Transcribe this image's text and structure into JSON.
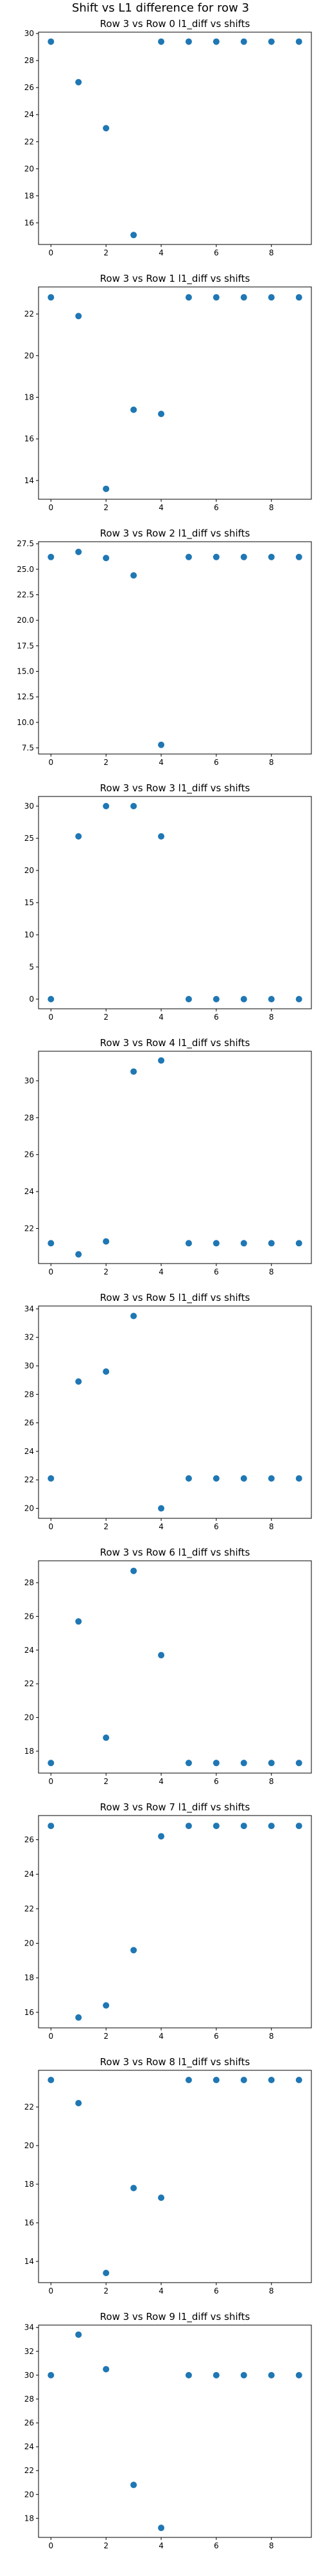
{
  "suptitle": "Shift vs L1 difference for row 3",
  "marker_color": "#1f77b4",
  "chart_data": [
    {
      "type": "scatter",
      "title": "Row 3 vs Row 0 l1_diff vs shifts",
      "x": [
        0,
        1,
        2,
        3,
        4,
        5,
        6,
        7,
        8,
        9
      ],
      "y": [
        29.4,
        26.4,
        23.0,
        15.1,
        29.4,
        29.4,
        29.4,
        29.4,
        29.4,
        29.4
      ],
      "xlim": [
        -0.45,
        9.45
      ],
      "ylim": [
        14.4,
        30.1
      ],
      "xticks": [
        0,
        2,
        4,
        6,
        8
      ],
      "yticks": [
        16,
        18,
        20,
        22,
        24,
        26,
        28,
        30
      ]
    },
    {
      "type": "scatter",
      "title": "Row 3 vs Row 1 l1_diff vs shifts",
      "x": [
        0,
        1,
        2,
        3,
        4,
        5,
        6,
        7,
        8,
        9
      ],
      "y": [
        22.8,
        21.9,
        13.6,
        17.4,
        17.2,
        22.8,
        22.8,
        22.8,
        22.8,
        22.8
      ],
      "xlim": [
        -0.45,
        9.45
      ],
      "ylim": [
        13.1,
        23.3
      ],
      "xticks": [
        0,
        2,
        4,
        6,
        8
      ],
      "yticks": [
        14,
        16,
        18,
        20,
        22
      ]
    },
    {
      "type": "scatter",
      "title": "Row 3 vs Row 2 l1_diff vs shifts",
      "x": [
        0,
        1,
        2,
        3,
        4,
        5,
        6,
        7,
        8,
        9
      ],
      "y": [
        26.2,
        26.7,
        26.1,
        24.4,
        7.8,
        26.2,
        26.2,
        26.2,
        26.2,
        26.2
      ],
      "xlim": [
        -0.45,
        9.45
      ],
      "ylim": [
        6.9,
        27.7
      ],
      "xticks": [
        0,
        2,
        4,
        6,
        8
      ],
      "yticks": [
        7.5,
        10.0,
        12.5,
        15.0,
        17.5,
        20.0,
        22.5,
        25.0,
        27.5
      ]
    },
    {
      "type": "scatter",
      "title": "Row 3 vs Row 3 l1_diff vs shifts",
      "x": [
        0,
        1,
        2,
        3,
        4,
        5,
        6,
        7,
        8,
        9
      ],
      "y": [
        0,
        25.3,
        30.0,
        30.0,
        25.3,
        0,
        0,
        0,
        0,
        0
      ],
      "xlim": [
        -0.45,
        9.45
      ],
      "ylim": [
        -1.5,
        31.5
      ],
      "xticks": [
        0,
        2,
        4,
        6,
        8
      ],
      "yticks": [
        0,
        5,
        10,
        15,
        20,
        25,
        30
      ]
    },
    {
      "type": "scatter",
      "title": "Row 3 vs Row 4 l1_diff vs shifts",
      "x": [
        0,
        1,
        2,
        3,
        4,
        5,
        6,
        7,
        8,
        9
      ],
      "y": [
        21.2,
        20.6,
        21.3,
        30.5,
        31.1,
        21.2,
        21.2,
        21.2,
        21.2,
        21.2
      ],
      "xlim": [
        -0.45,
        9.45
      ],
      "ylim": [
        20.1,
        31.6
      ],
      "xticks": [
        0,
        2,
        4,
        6,
        8
      ],
      "yticks": [
        22,
        24,
        26,
        28,
        30
      ]
    },
    {
      "type": "scatter",
      "title": "Row 3 vs Row 5 l1_diff vs shifts",
      "x": [
        0,
        1,
        2,
        3,
        4,
        5,
        6,
        7,
        8,
        9
      ],
      "y": [
        22.1,
        28.9,
        29.6,
        33.5,
        20.0,
        22.1,
        22.1,
        22.1,
        22.1,
        22.1
      ],
      "xlim": [
        -0.45,
        9.45
      ],
      "ylim": [
        19.3,
        34.2
      ],
      "xticks": [
        0,
        2,
        4,
        6,
        8
      ],
      "yticks": [
        20,
        22,
        24,
        26,
        28,
        30,
        32,
        34
      ]
    },
    {
      "type": "scatter",
      "title": "Row 3 vs Row 6 l1_diff vs shifts",
      "x": [
        0,
        1,
        2,
        3,
        4,
        5,
        6,
        7,
        8,
        9
      ],
      "y": [
        17.3,
        25.7,
        18.8,
        28.7,
        23.7,
        17.3,
        17.3,
        17.3,
        17.3,
        17.3
      ],
      "xlim": [
        -0.45,
        9.45
      ],
      "ylim": [
        16.7,
        29.3
      ],
      "xticks": [
        0,
        2,
        4,
        6,
        8
      ],
      "yticks": [
        18,
        20,
        22,
        24,
        26,
        28
      ]
    },
    {
      "type": "scatter",
      "title": "Row 3 vs Row 7 l1_diff vs shifts",
      "x": [
        0,
        1,
        2,
        3,
        4,
        5,
        6,
        7,
        8,
        9
      ],
      "y": [
        26.8,
        15.7,
        16.4,
        19.6,
        26.2,
        26.8,
        26.8,
        26.8,
        26.8,
        26.8
      ],
      "xlim": [
        -0.45,
        9.45
      ],
      "ylim": [
        15.1,
        27.4
      ],
      "xticks": [
        0,
        2,
        4,
        6,
        8
      ],
      "yticks": [
        16,
        18,
        20,
        22,
        24,
        26
      ]
    },
    {
      "type": "scatter",
      "title": "Row 3 vs Row 8 l1_diff vs shifts",
      "x": [
        0,
        1,
        2,
        3,
        4,
        5,
        6,
        7,
        8,
        9
      ],
      "y": [
        23.4,
        22.2,
        13.4,
        17.8,
        17.3,
        23.4,
        23.4,
        23.4,
        23.4,
        23.4
      ],
      "xlim": [
        -0.45,
        9.45
      ],
      "ylim": [
        12.9,
        23.9
      ],
      "xticks": [
        0,
        2,
        4,
        6,
        8
      ],
      "yticks": [
        14,
        16,
        18,
        20,
        22
      ]
    },
    {
      "type": "scatter",
      "title": "Row 3 vs Row 9 l1_diff vs shifts",
      "x": [
        0,
        1,
        2,
        3,
        4,
        5,
        6,
        7,
        8,
        9
      ],
      "y": [
        30.0,
        33.4,
        30.5,
        20.8,
        17.2,
        30.0,
        30.0,
        30.0,
        30.0,
        30.0
      ],
      "xlim": [
        -0.45,
        9.45
      ],
      "ylim": [
        16.4,
        34.2
      ],
      "xticks": [
        0,
        2,
        4,
        6,
        8
      ],
      "yticks": [
        18,
        20,
        22,
        24,
        26,
        28,
        30,
        32,
        34
      ]
    }
  ]
}
